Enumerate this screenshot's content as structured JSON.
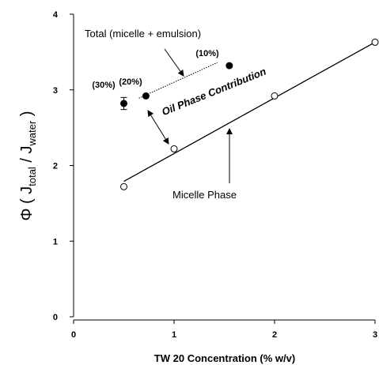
{
  "chart_data": {
    "type": "scatter",
    "xlabel": "TW 20 Concentration (% w/v)",
    "ylabel_parts": [
      "Φ ( J",
      "total",
      " / J",
      "water",
      " )"
    ],
    "xlim": [
      0,
      3
    ],
    "ylim": [
      0,
      4
    ],
    "xticks": [
      0,
      1,
      2,
      3
    ],
    "yticks": [
      0,
      1,
      2,
      3,
      4
    ],
    "series": [
      {
        "name": "Total (micelle + emulsion)",
        "marker": "filled",
        "color": "#000000",
        "x": [
          0.5,
          0.72,
          1.55
        ],
        "values": [
          2.82,
          2.92,
          3.32
        ],
        "errors": [
          0.08,
          null,
          null
        ],
        "point_labels": [
          "(30%)",
          "(20%)",
          "(10%)"
        ],
        "line": {
          "style": "dotted",
          "x": [
            0.65,
            1.43
          ],
          "values": [
            2.89,
            3.36
          ]
        }
      },
      {
        "name": "Micelle Phase",
        "marker": "open",
        "color": "#000000",
        "x": [
          0.5,
          1,
          2,
          3
        ],
        "values": [
          1.72,
          2.22,
          2.92,
          3.63
        ],
        "errors": [
          null,
          null,
          null,
          null
        ],
        "line": {
          "style": "solid",
          "x": [
            0.5,
            3
          ],
          "values": [
            1.79,
            3.63
          ]
        }
      }
    ],
    "annotation": "Oil Phase Contribution"
  }
}
